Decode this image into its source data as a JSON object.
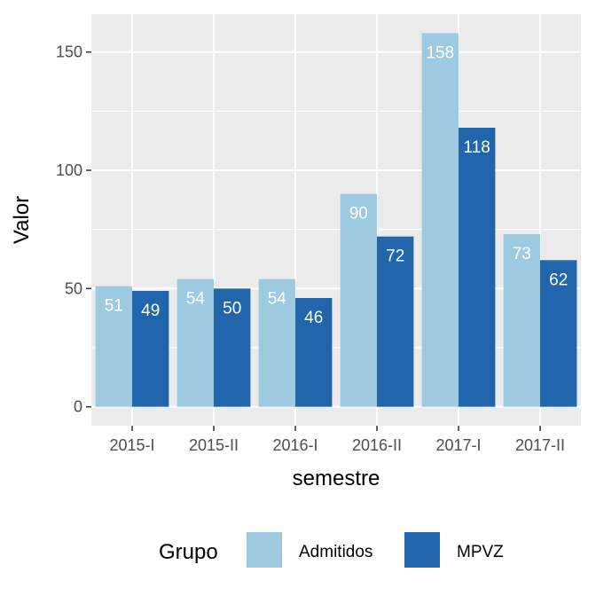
{
  "chart_data": {
    "type": "bar",
    "xlabel": "semestre",
    "ylabel": "Valor",
    "categories": [
      "2015-I",
      "2015-II",
      "2016-I",
      "2016-II",
      "2017-I",
      "2017-II"
    ],
    "series": [
      {
        "name": "Admitidos",
        "color": "#9ecae1",
        "values": [
          51,
          54,
          54,
          90,
          158,
          73
        ]
      },
      {
        "name": "MPVZ",
        "color": "#2166ac",
        "values": [
          49,
          50,
          46,
          72,
          118,
          62
        ]
      }
    ],
    "ylim": [
      -8,
      166
    ],
    "yticks": [
      0,
      50,
      100,
      150
    ],
    "grid": true,
    "legend": {
      "title": "Grupo",
      "position": "bottom"
    }
  }
}
